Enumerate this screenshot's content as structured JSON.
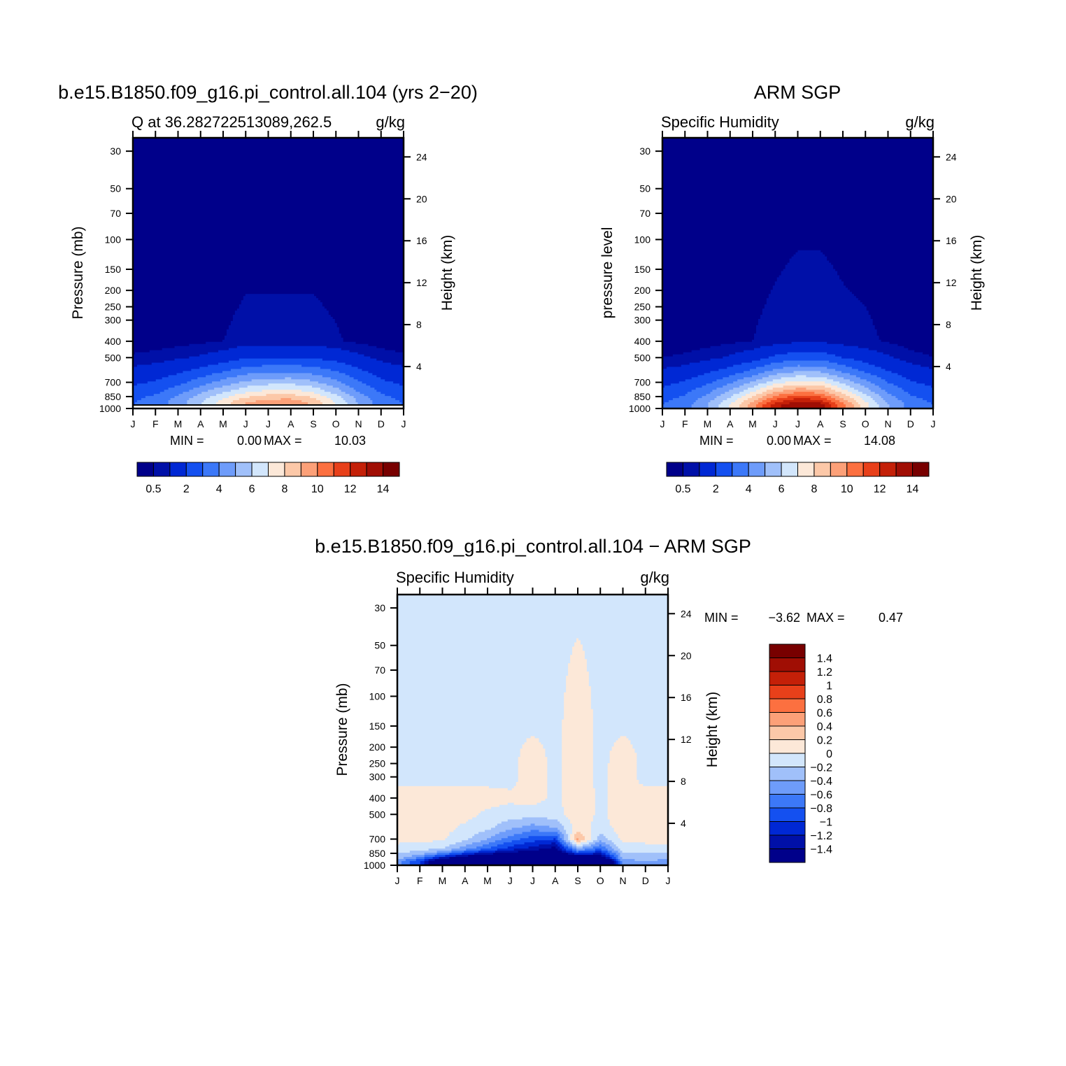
{
  "chart_data": [
    {
      "type": "heatmap",
      "id": "model",
      "title": "b.e15.B1850.f09_g16.pi_control.all.104 (yrs 2−20)",
      "subtitle_left": "Q at 36.282722513089,262.5",
      "subtitle_right": "g/kg",
      "ylabel": "Pressure (mb)",
      "ylabel_right": "Height (km)",
      "x_ticks": [
        "J",
        "F",
        "M",
        "A",
        "M",
        "J",
        "J",
        "A",
        "S",
        "O",
        "N",
        "D",
        "J"
      ],
      "y_ticks": [
        "30",
        "50",
        "70",
        "100",
        "150",
        "200",
        "250",
        "300",
        "400",
        "500",
        "700",
        "850",
        "1000"
      ],
      "y_right_ticks": [
        "4",
        "8",
        "12",
        "16",
        "20",
        "24"
      ],
      "y_scale": "log",
      "ylim": [
        1000,
        25
      ],
      "min_label": "MIN =",
      "min_value": "0.00",
      "max_label": "MAX =",
      "max_value": "10.03",
      "surface_line": true,
      "months": [
        "Jan",
        "Feb",
        "Mar",
        "Apr",
        "May",
        "Jun",
        "Jul",
        "Aug",
        "Sep",
        "Oct",
        "Nov",
        "Dec",
        "Jan"
      ],
      "pressure_levels": [
        25,
        400,
        500,
        600,
        700,
        800,
        850,
        900,
        950,
        1000
      ],
      "values": [
        [
          0.0,
          0.0,
          0.0,
          0.0,
          0.0,
          0.0,
          0.0,
          0.0,
          0.0,
          0.0,
          0.0,
          0.0,
          0.0
        ],
        [
          0.2,
          0.25,
          0.3,
          0.4,
          0.5,
          0.65,
          0.65,
          0.65,
          0.65,
          0.55,
          0.4,
          0.25,
          0.2
        ],
        [
          0.6,
          0.7,
          0.9,
          1.1,
          1.4,
          1.9,
          2.0,
          2.0,
          1.9,
          1.6,
          1.2,
          0.8,
          0.6
        ],
        [
          1.2,
          1.4,
          1.8,
          2.3,
          2.9,
          3.5,
          3.7,
          3.8,
          3.5,
          3.0,
          2.2,
          1.5,
          1.2
        ],
        [
          1.8,
          2.1,
          2.7,
          3.5,
          4.4,
          5.2,
          5.6,
          5.7,
          5.2,
          4.3,
          3.1,
          2.2,
          1.8
        ],
        [
          2.4,
          2.8,
          3.6,
          4.8,
          5.9,
          6.9,
          7.4,
          7.5,
          6.9,
          5.6,
          4.0,
          2.9,
          2.4
        ],
        [
          2.7,
          3.2,
          4.1,
          5.4,
          6.7,
          7.8,
          8.4,
          8.5,
          7.8,
          6.3,
          4.5,
          3.2,
          2.7
        ],
        [
          2.9,
          3.4,
          4.4,
          5.8,
          7.3,
          8.7,
          9.3,
          9.4,
          8.5,
          6.8,
          4.8,
          3.4,
          2.9
        ],
        [
          3.0,
          3.5,
          4.5,
          6.0,
          7.6,
          9.2,
          9.8,
          9.9,
          8.9,
          7.0,
          5.0,
          3.5,
          3.0
        ],
        [
          3.0,
          3.5,
          4.5,
          6.0,
          7.6,
          9.2,
          9.8,
          9.9,
          8.9,
          7.0,
          5.0,
          3.5,
          3.0
        ]
      ],
      "colorbar": {
        "levels": [
          0.5,
          1,
          2,
          3,
          4,
          5,
          6,
          7,
          8,
          9,
          10,
          11,
          12,
          13,
          14
        ],
        "labels": [
          "0.5",
          "2",
          "4",
          "6",
          "8",
          "10",
          "12",
          "14"
        ],
        "colors": [
          "#00008a",
          "#0010a8",
          "#0028d4",
          "#1450f0",
          "#3c78f8",
          "#6e9cfa",
          "#a0c0fa",
          "#d2e6fc",
          "#fce8d8",
          "#fcc8a8",
          "#fca078",
          "#fc7040",
          "#e8401a",
          "#c42008",
          "#a00e04",
          "#780000"
        ]
      }
    },
    {
      "type": "heatmap",
      "id": "obs",
      "title": "ARM SGP",
      "subtitle_left": "Specific Humidity",
      "subtitle_right": "g/kg",
      "ylabel": "pressure level",
      "ylabel_right": "Height (km)",
      "x_ticks": [
        "J",
        "F",
        "M",
        "A",
        "M",
        "J",
        "J",
        "A",
        "S",
        "O",
        "N",
        "D",
        "J"
      ],
      "y_ticks": [
        "30",
        "50",
        "70",
        "100",
        "150",
        "200",
        "250",
        "300",
        "400",
        "500",
        "700",
        "850",
        "1000"
      ],
      "y_right_ticks": [
        "4",
        "8",
        "12",
        "16",
        "20",
        "24"
      ],
      "y_scale": "log",
      "ylim": [
        1000,
        25
      ],
      "min_label": "MIN =",
      "min_value": "0.00",
      "max_label": "MAX =",
      "max_value": "14.08",
      "surface_line": false,
      "months": [
        "Jan",
        "Feb",
        "Mar",
        "Apr",
        "May",
        "Jun",
        "Jul",
        "Aug",
        "Sep",
        "Oct",
        "Nov",
        "Dec",
        "Jan"
      ],
      "pressure_levels": [
        25,
        400,
        500,
        600,
        700,
        800,
        850,
        900,
        950,
        1000
      ],
      "values": [
        [
          0.0,
          0.0,
          0.0,
          0.0,
          0.0,
          0.0,
          0.0,
          0.0,
          0.0,
          0.0,
          0.0,
          0.0,
          0.0
        ],
        [
          0.2,
          0.25,
          0.3,
          0.4,
          0.5,
          0.7,
          0.9,
          0.9,
          0.7,
          0.6,
          0.45,
          0.25,
          0.2
        ],
        [
          0.5,
          0.6,
          0.8,
          1.1,
          1.5,
          2.2,
          2.6,
          2.6,
          2.0,
          1.5,
          1.1,
          0.7,
          0.5
        ],
        [
          1.1,
          1.3,
          1.8,
          2.4,
          3.2,
          4.3,
          4.9,
          4.8,
          3.8,
          2.8,
          2.0,
          1.4,
          1.1
        ],
        [
          1.7,
          2.1,
          2.8,
          3.8,
          5.1,
          6.6,
          7.4,
          7.2,
          5.7,
          4.3,
          3.0,
          2.1,
          1.7
        ],
        [
          2.3,
          2.8,
          3.8,
          5.2,
          7.0,
          9.0,
          10.0,
          9.7,
          7.6,
          5.6,
          3.9,
          2.8,
          2.3
        ],
        [
          2.6,
          3.1,
          4.3,
          5.9,
          7.9,
          10.2,
          11.4,
          11.0,
          8.6,
          6.3,
          4.4,
          3.1,
          2.6
        ],
        [
          2.8,
          3.4,
          4.7,
          6.5,
          8.8,
          11.4,
          12.8,
          12.3,
          9.5,
          6.9,
          4.8,
          3.4,
          2.8
        ],
        [
          3.0,
          3.6,
          5.0,
          7.0,
          9.6,
          12.6,
          14.0,
          13.5,
          10.3,
          7.4,
          5.1,
          3.6,
          3.0
        ],
        [
          3.0,
          3.6,
          5.0,
          7.0,
          9.6,
          12.6,
          14.0,
          13.5,
          10.3,
          7.4,
          5.1,
          3.6,
          3.0
        ]
      ],
      "colorbar": {
        "levels": [
          0.5,
          1,
          2,
          3,
          4,
          5,
          6,
          7,
          8,
          9,
          10,
          11,
          12,
          13,
          14
        ],
        "labels": [
          "0.5",
          "2",
          "4",
          "6",
          "8",
          "10",
          "12",
          "14"
        ],
        "colors": [
          "#00008a",
          "#0010a8",
          "#0028d4",
          "#1450f0",
          "#3c78f8",
          "#6e9cfa",
          "#a0c0fa",
          "#d2e6fc",
          "#fce8d8",
          "#fcc8a8",
          "#fca078",
          "#fc7040",
          "#e8401a",
          "#c42008",
          "#a00e04",
          "#780000"
        ]
      }
    },
    {
      "type": "heatmap",
      "id": "diff",
      "title": "b.e15.B1850.f09_g16.pi_control.all.104 − ARM SGP",
      "subtitle_left": "Specific Humidity",
      "subtitle_right": "g/kg",
      "ylabel": "Pressure (mb)",
      "ylabel_right": "Height (km)",
      "x_ticks": [
        "J",
        "F",
        "M",
        "A",
        "M",
        "J",
        "J",
        "A",
        "S",
        "O",
        "N",
        "D",
        "J"
      ],
      "y_ticks": [
        "30",
        "50",
        "70",
        "100",
        "150",
        "200",
        "250",
        "300",
        "400",
        "500",
        "700",
        "850",
        "1000"
      ],
      "y_right_ticks": [
        "4",
        "8",
        "12",
        "16",
        "20",
        "24"
      ],
      "y_scale": "log",
      "ylim": [
        1000,
        25
      ],
      "min_label": "MIN =",
      "min_value": "−3.62",
      "max_label": "MAX =",
      "max_value": "0.47",
      "surface_line": false,
      "months": [
        "Jan",
        "Feb",
        "Mar",
        "Apr",
        "May",
        "Jun",
        "Jul",
        "Aug",
        "Sep",
        "Oct",
        "Nov",
        "Dec",
        "Jan"
      ],
      "pressure_levels": [
        25,
        140,
        230,
        320,
        400,
        500,
        600,
        700,
        800,
        850,
        900,
        950,
        1000
      ],
      "values": [
        [
          -0.05,
          -0.05,
          -0.05,
          -0.05,
          -0.05,
          -0.05,
          -0.05,
          -0.05,
          -0.05,
          -0.05,
          -0.05,
          -0.05,
          -0.05
        ],
        [
          -0.05,
          -0.05,
          -0.05,
          -0.05,
          -0.05,
          -0.05,
          -0.05,
          -0.05,
          0.1,
          -0.05,
          -0.05,
          -0.05,
          -0.05
        ],
        [
          -0.05,
          -0.05,
          -0.05,
          -0.05,
          -0.05,
          -0.05,
          0.08,
          -0.05,
          0.12,
          -0.05,
          0.08,
          -0.05,
          -0.05
        ],
        [
          -0.05,
          -0.05,
          -0.05,
          -0.05,
          -0.05,
          -0.05,
          0.1,
          -0.05,
          0.12,
          -0.05,
          0.1,
          -0.05,
          -0.05
        ],
        [
          0.1,
          0.1,
          0.1,
          0.1,
          0.1,
          0.05,
          0.08,
          -0.05,
          0.15,
          -0.05,
          0.12,
          0.1,
          0.1
        ],
        [
          0.1,
          0.1,
          0.1,
          0.08,
          -0.05,
          -0.1,
          -0.1,
          -0.1,
          0.15,
          -0.05,
          0.12,
          0.1,
          0.1
        ],
        [
          0.1,
          0.1,
          0.08,
          -0.05,
          -0.15,
          -0.35,
          -0.5,
          -0.4,
          0.12,
          -0.1,
          0.1,
          0.1,
          0.1
        ],
        [
          0.08,
          0.08,
          0.02,
          -0.15,
          -0.4,
          -0.7,
          -0.9,
          -1.0,
          0.45,
          -0.3,
          0.05,
          0.08,
          0.08
        ],
        [
          -0.1,
          -0.12,
          -0.2,
          -0.5,
          -0.8,
          -1.1,
          -1.3,
          -1.5,
          -0.4,
          -0.8,
          -0.1,
          -0.1,
          -0.1
        ],
        [
          -0.2,
          -0.3,
          -0.6,
          -1.0,
          -1.3,
          -1.5,
          -1.6,
          -1.7,
          -1.0,
          -1.2,
          -0.25,
          -0.2,
          -0.2
        ],
        [
          -0.3,
          -0.6,
          -1.2,
          -1.6,
          -1.8,
          -2.0,
          -2.2,
          -2.3,
          -1.8,
          -1.6,
          -0.35,
          -0.3,
          -0.3
        ],
        [
          -0.5,
          -1.0,
          -2.0,
          -2.5,
          -2.8,
          -3.0,
          -3.2,
          -3.4,
          -3.0,
          -2.6,
          -0.5,
          -0.4,
          -0.5
        ],
        [
          -0.5,
          -1.0,
          -2.0,
          -2.5,
          -2.8,
          -3.0,
          -3.2,
          -3.4,
          -3.0,
          -2.6,
          -0.5,
          -0.4,
          -0.5
        ]
      ],
      "colorbar": {
        "levels": [
          -1.4,
          -1.2,
          -1,
          -0.8,
          -0.6,
          -0.4,
          -0.2,
          0,
          0.2,
          0.4,
          0.6,
          0.8,
          1,
          1.2,
          1.4
        ],
        "labels": [
          "1.4",
          "1.2",
          "1",
          "0.8",
          "0.6",
          "0.4",
          "0.2",
          "0",
          "−0.2",
          "−0.4",
          "−0.6",
          "−0.8",
          "−1",
          "−1.2",
          "−1.4"
        ],
        "colors": [
          "#00008a",
          "#0010a8",
          "#0028d4",
          "#1450f0",
          "#3c78f8",
          "#6e9cfa",
          "#a0c0fa",
          "#d2e6fc",
          "#fce8d8",
          "#fcc8a8",
          "#fca078",
          "#fc7040",
          "#e8401a",
          "#c42008",
          "#a00e04",
          "#780000"
        ]
      }
    }
  ]
}
